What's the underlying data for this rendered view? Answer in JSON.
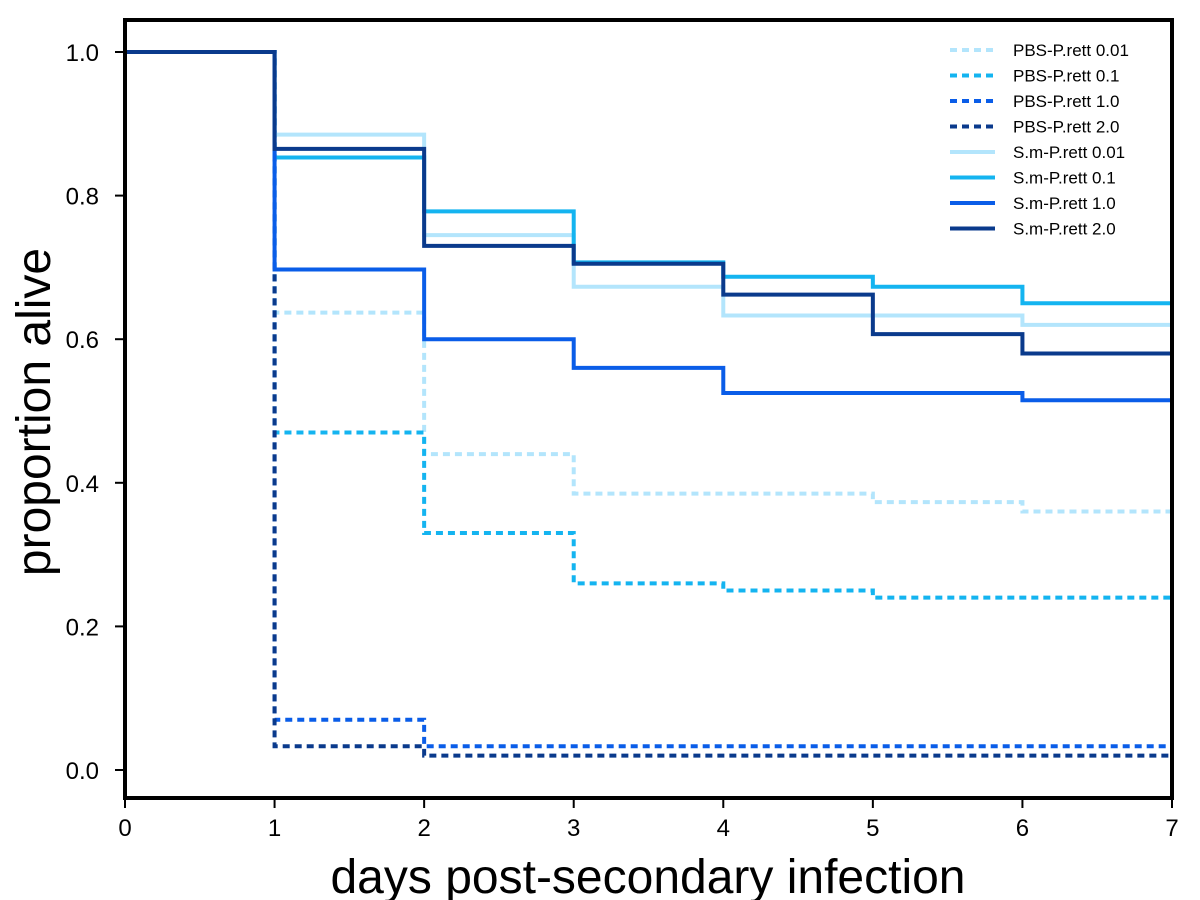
{
  "chart_data": {
    "type": "line",
    "step": true,
    "title": "",
    "xlabel": "days post-secondary infection",
    "ylabel": "proportion alive",
    "xlim": [
      0,
      7
    ],
    "ylim": [
      0.0,
      1.0
    ],
    "xticks": [
      "0",
      "1",
      "2",
      "3",
      "4",
      "5",
      "6",
      "7"
    ],
    "yticks": [
      "0.0",
      "0.2",
      "0.4",
      "0.6",
      "0.8",
      "1.0"
    ],
    "grid": false,
    "legend_position": "top-right",
    "x": [
      0,
      1,
      2,
      3,
      4,
      5,
      6,
      7
    ],
    "series": [
      {
        "name": "PBS-P.rett 0.01",
        "style": "dotted",
        "color": "#b3e5fc",
        "values": [
          1.0,
          0.637,
          0.44,
          0.385,
          0.385,
          0.373,
          0.36,
          0.36
        ]
      },
      {
        "name": "PBS-P.rett 0.1",
        "style": "dotted",
        "color": "#14b4f0",
        "values": [
          1.0,
          0.47,
          0.33,
          0.26,
          0.25,
          0.24,
          0.24,
          0.24
        ]
      },
      {
        "name": "PBS-P.rett 1.0",
        "style": "dotted",
        "color": "#0a5de8",
        "values": [
          1.0,
          0.07,
          0.033,
          0.033,
          0.033,
          0.033,
          0.033,
          0.033
        ]
      },
      {
        "name": "PBS-P.rett 2.0",
        "style": "dotted",
        "color": "#0a3a8c",
        "values": [
          1.0,
          0.033,
          0.02,
          0.02,
          0.02,
          0.02,
          0.02,
          0.02
        ]
      },
      {
        "name": "S.m-P.rett 0.01",
        "style": "solid",
        "color": "#b3e5fc",
        "values": [
          1.0,
          0.885,
          0.745,
          0.673,
          0.633,
          0.633,
          0.62,
          0.62
        ]
      },
      {
        "name": "S.m-P.rett 0.1",
        "style": "solid",
        "color": "#14b4f0",
        "values": [
          1.0,
          0.853,
          0.778,
          0.707,
          0.687,
          0.673,
          0.65,
          0.65
        ]
      },
      {
        "name": "S.m-P.rett 1.0",
        "style": "solid",
        "color": "#0a5de8",
        "values": [
          1.0,
          0.697,
          0.6,
          0.56,
          0.525,
          0.525,
          0.515,
          0.515
        ]
      },
      {
        "name": "S.m-P.rett 2.0",
        "style": "solid",
        "color": "#0a3a8c",
        "values": [
          1.0,
          0.865,
          0.73,
          0.705,
          0.662,
          0.607,
          0.58,
          0.58
        ]
      }
    ]
  }
}
